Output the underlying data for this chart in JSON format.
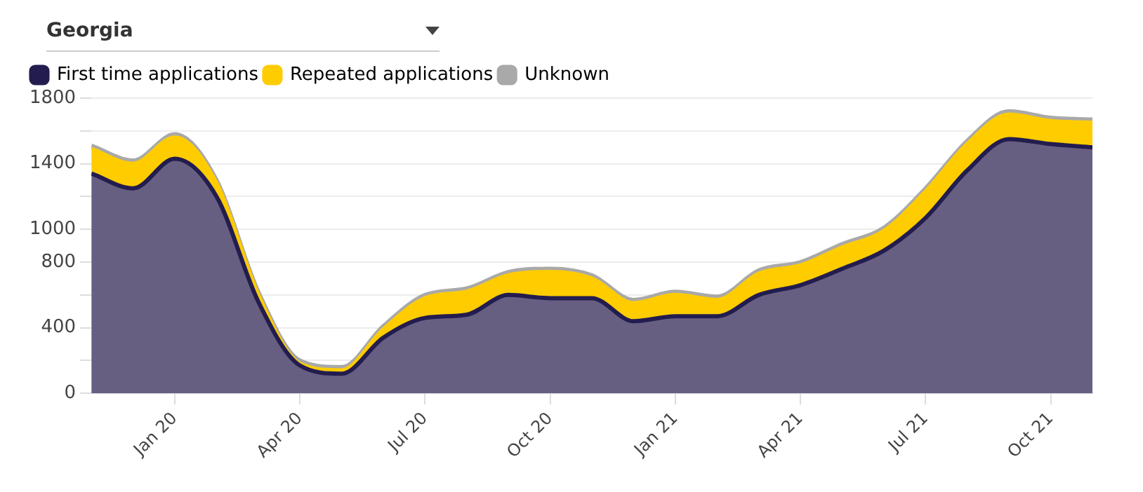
{
  "chart_data": {
    "type": "area",
    "title": "Georgia",
    "stacked": true,
    "grid": "y",
    "legend": "top left",
    "marker": "none",
    "x": [
      "2019-11",
      "2019-12",
      "2020-01",
      "2020-02",
      "2020-03",
      "2020-04",
      "2020-05",
      "2020-06",
      "2020-07",
      "2020-08",
      "2020-09",
      "2020-10",
      "2020-11",
      "2020-12",
      "2021-01",
      "2021-02",
      "2021-03",
      "2021-04",
      "2021-05",
      "2021-06",
      "2021-07",
      "2021-08",
      "2021-09",
      "2021-10",
      "2021-11"
    ],
    "xlim": [
      "2019-11",
      "2021-11"
    ],
    "xticks": [
      {
        "value": "2020-01",
        "label": "Jan 20"
      },
      {
        "value": "2020-04",
        "label": "Apr 20"
      },
      {
        "value": "2020-07",
        "label": "Jul 20"
      },
      {
        "value": "2020-10",
        "label": "Oct 20"
      },
      {
        "value": "2021-01",
        "label": "Jan 21"
      },
      {
        "value": "2021-04",
        "label": "Apr 21"
      },
      {
        "value": "2021-07",
        "label": "Jul 21"
      },
      {
        "value": "2021-10",
        "label": "Oct 21"
      }
    ],
    "ylim": [
      0,
      1800
    ],
    "yticks": [
      0,
      {
        "value": 200,
        "label": null
      },
      400,
      {
        "value": 600,
        "label": null
      },
      800,
      1000,
      {
        "value": 1200,
        "label": null
      },
      1400,
      {
        "value": 1600,
        "label": null
      },
      1800
    ],
    "series": [
      {
        "name": "First time applications",
        "color": "#231d4f",
        "values": [
          1340,
          1250,
          1430,
          1200,
          560,
          170,
          120,
          340,
          460,
          480,
          600,
          580,
          580,
          440,
          470,
          470,
          600,
          660,
          760,
          870,
          1070,
          1360,
          1550,
          1520,
          1500
        ]
      },
      {
        "name": "Repeated applications",
        "color": "#ffcc00",
        "values": [
          150,
          150,
          130,
          80,
          40,
          10,
          20,
          50,
          120,
          140,
          120,
          160,
          120,
          110,
          130,
          100,
          130,
          120,
          130,
          120,
          160,
          160,
          150,
          140,
          150
        ]
      },
      {
        "name": "Unknown",
        "color": "#a9a9a9",
        "values": [
          20,
          20,
          20,
          20,
          20,
          20,
          20,
          20,
          20,
          20,
          20,
          20,
          20,
          20,
          20,
          20,
          20,
          20,
          20,
          20,
          20,
          20,
          20,
          20,
          20
        ]
      }
    ]
  }
}
